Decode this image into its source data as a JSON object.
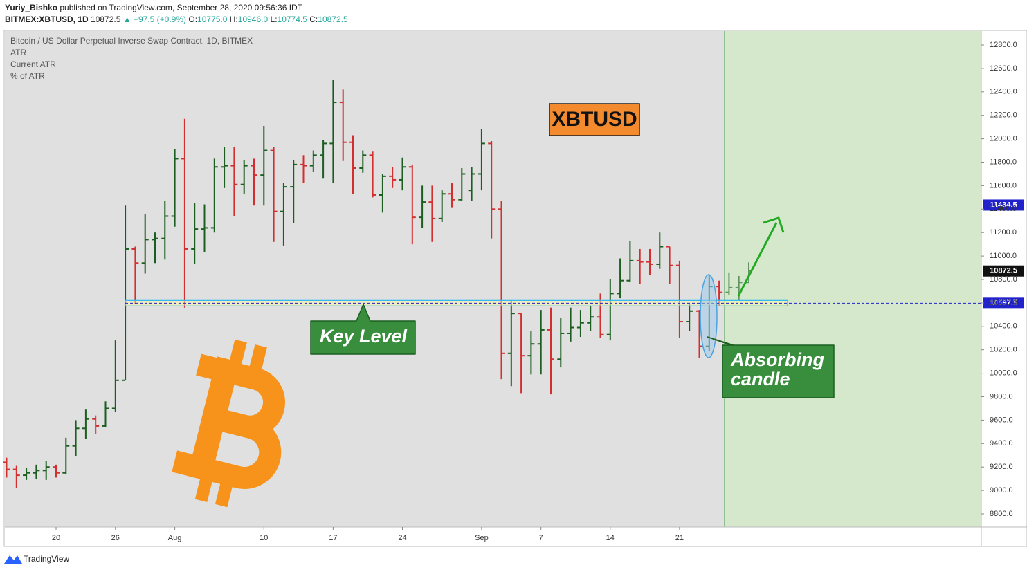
{
  "header": {
    "author": "Yuriy_Bishko",
    "published": "published on TradingView.com, September 28, 2020 09:56:36 IDT",
    "symbol": "BITMEX:XBTUSD, 1D",
    "last": "10872.5",
    "change": "▲ +97.5 (+0.9%)",
    "ohlc": [
      {
        "label": "O:",
        "value": "10775.0"
      },
      {
        "label": "H:",
        "value": "10946.0"
      },
      {
        "label": "L:",
        "value": "10774.5"
      },
      {
        "label": "C:",
        "value": "10872.5"
      }
    ]
  },
  "legend": [
    "Bitcoin / US Dollar Perpetual Inverse Swap Contract, 1D, BITMEX",
    "ATR",
    "Current ATR",
    "% of ATR"
  ],
  "footer": "TradingView",
  "chart_data": {
    "type": "ohlc",
    "up_color": "#1b5e20",
    "down_color": "#d32f2f",
    "categories": [
      null,
      null,
      null,
      null,
      null,
      "20",
      null,
      null,
      null,
      null,
      null,
      "26",
      null,
      null,
      null,
      null,
      null,
      "Aug",
      null,
      null,
      null,
      null,
      null,
      null,
      null,
      null,
      "10",
      null,
      null,
      null,
      null,
      null,
      null,
      "17",
      null,
      null,
      null,
      null,
      null,
      null,
      "24",
      null,
      null,
      null,
      null,
      null,
      null,
      null,
      "Sep",
      null,
      null,
      null,
      null,
      null,
      "7",
      null,
      null,
      null,
      null,
      null,
      null,
      "14",
      null,
      null,
      null,
      null,
      null,
      null,
      "21",
      null,
      null,
      null,
      null,
      null,
      null,
      null
    ],
    "open": [
      9240,
      9180,
      9130,
      9150,
      9170,
      9200,
      9150,
      9380,
      9530,
      9610,
      9550,
      9700,
      9940,
      11060,
      10940,
      11140,
      11150,
      11340,
      11830,
      11060,
      11230,
      11240,
      11760,
      11770,
      11610,
      11770,
      11690,
      11900,
      11380,
      11590,
      11780,
      11770,
      11860,
      11960,
      12310,
      11970,
      11750,
      11860,
      11520,
      11680,
      11650,
      11760,
      11330,
      11460,
      11320,
      11530,
      11480,
      11560,
      11700,
      11960,
      11400,
      10170,
      10510,
      10150,
      10250,
      10370,
      10120,
      10340,
      10390,
      10430,
      10480,
      10330,
      10680,
      10790,
      10960,
      10950,
      10930,
      11080,
      10920,
      10440,
      10530,
      10230,
      10740,
      10690,
      10730,
      10775
    ],
    "high": [
      9280,
      9210,
      9190,
      9220,
      9250,
      9220,
      9450,
      9600,
      9690,
      9640,
      9760,
      10280,
      11430,
      11080,
      11360,
      11200,
      11470,
      11915,
      12170,
      11450,
      11440,
      11830,
      11930,
      11930,
      11820,
      11830,
      12110,
      11930,
      11620,
      11820,
      11860,
      11900,
      11990,
      12500,
      12420,
      12030,
      11900,
      11890,
      11700,
      11760,
      11840,
      11780,
      11600,
      11600,
      11560,
      11620,
      11750,
      11760,
      12080,
      11980,
      11470,
      10620,
      10510,
      10360,
      10540,
      10560,
      10470,
      10560,
      10540,
      10570,
      10680,
      10800,
      10980,
      11130,
      11060,
      11060,
      11200,
      11080,
      10960,
      10590,
      10540,
      10840,
      10790,
      10860,
      10830,
      10946
    ],
    "low": [
      9110,
      9020,
      9090,
      9100,
      9090,
      9110,
      9140,
      9290,
      9440,
      9480,
      9540,
      9670,
      9940,
      10590,
      10850,
      10940,
      10970,
      11250,
      10560,
      10930,
      11030,
      11200,
      11580,
      11340,
      11530,
      11430,
      11430,
      11120,
      11090,
      11280,
      11620,
      11720,
      11660,
      11620,
      11810,
      11530,
      11710,
      11500,
      11370,
      11580,
      11560,
      11100,
      11240,
      11120,
      11290,
      11410,
      11470,
      11470,
      11560,
      11150,
      9950,
      9890,
      9830,
      9990,
      9990,
      9820,
      10050,
      10270,
      10310,
      10360,
      10300,
      10280,
      10640,
      10780,
      10760,
      10840,
      10890,
      10760,
      10300,
      10360,
      10130,
      10190,
      10570,
      10670,
      10620,
      10774.5
    ],
    "close": [
      9180,
      9130,
      9150,
      9170,
      9200,
      9150,
      9380,
      9530,
      9610,
      9550,
      9700,
      9940,
      11060,
      10940,
      11140,
      11150,
      11340,
      11830,
      11060,
      11230,
      11240,
      11760,
      11770,
      11610,
      11770,
      11690,
      11900,
      11380,
      11590,
      11780,
      11770,
      11860,
      11960,
      12310,
      11970,
      11750,
      11860,
      11520,
      11680,
      11650,
      11760,
      11330,
      11460,
      11320,
      11530,
      11480,
      11700,
      11700,
      11960,
      11400,
      10170,
      10510,
      10150,
      10250,
      10370,
      10120,
      10340,
      10390,
      10430,
      10480,
      10330,
      10680,
      10790,
      10960,
      10950,
      10930,
      11080,
      10920,
      10440,
      10530,
      10230,
      10740,
      10690,
      10730,
      10775,
      10872.5
    ],
    "ylim": [
      8688,
      12918
    ],
    "yticks": [
      {
        "value": 8800,
        "label": "8800.0"
      },
      {
        "value": 9000,
        "label": "9000.0"
      },
      {
        "value": 9200,
        "label": "9200.0"
      },
      {
        "value": 9400,
        "label": "9400.0"
      },
      {
        "value": 9600,
        "label": "9600.0"
      },
      {
        "value": 9800,
        "label": "9800.0"
      },
      {
        "value": 10000,
        "label": "10000.0"
      },
      {
        "value": 10200,
        "label": "10200.0"
      },
      {
        "value": 10400,
        "label": "10400.0"
      },
      {
        "value": 10600,
        "label": "10600.0"
      },
      {
        "value": 10800,
        "label": "10800.0"
      },
      {
        "value": 11000,
        "label": "11000.0"
      },
      {
        "value": 11200,
        "label": "11200.0"
      },
      {
        "value": 11400,
        "label": "11400.0"
      },
      {
        "value": 11600,
        "label": "11600.0"
      },
      {
        "value": 11800,
        "label": "11800.0"
      },
      {
        "value": 12000,
        "label": "12000.0"
      },
      {
        "value": 12200,
        "label": "12200.0"
      },
      {
        "value": 12400,
        "label": "12400.0"
      },
      {
        "value": 12600,
        "label": "12600.0"
      },
      {
        "value": 12800,
        "label": "12800.0"
      }
    ],
    "levels": [
      {
        "value": 11434.5,
        "color": "#2222cc"
      },
      {
        "value": 10597.5,
        "color": "#2222cc"
      }
    ],
    "last_price": 10872.5,
    "annotations": {
      "symbol_box": "XBTUSD",
      "key_level": "Key Level",
      "absorbing": [
        "Absorbing",
        "candle"
      ]
    }
  }
}
